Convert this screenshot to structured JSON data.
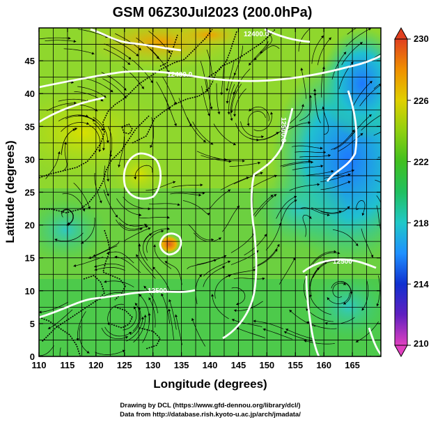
{
  "title": "GSM 06Z30Jul2023 (200.0hPa)",
  "x_axis": {
    "label": "Longitude (degrees)",
    "min": 110,
    "max": 170,
    "ticks": [
      "110",
      "115",
      "120",
      "125",
      "130",
      "135",
      "140",
      "145",
      "150",
      "155",
      "160",
      "165"
    ]
  },
  "y_axis": {
    "label": "Latitude (degrees)",
    "min": 0,
    "max": 50,
    "ticks": [
      "0",
      "5",
      "10",
      "15",
      "20",
      "25",
      "30",
      "35",
      "40",
      "45"
    ]
  },
  "colorbar": {
    "labels": [
      "230",
      "226",
      "222",
      "218",
      "214",
      "210"
    ],
    "min": 210,
    "max": 230,
    "colors": [
      "#e040c0",
      "#6020c0",
      "#1030d0",
      "#1e90ff",
      "#20c8c8",
      "#20c060",
      "#40c020",
      "#90d010",
      "#e0d000",
      "#f09000",
      "#e04020"
    ]
  },
  "contour_labels": [
    {
      "text": "12400.0"
    },
    {
      "text": "12500.0"
    },
    {
      "text": "12500.0"
    },
    {
      "text": "12500"
    },
    {
      "text": "12500"
    }
  ],
  "credits": {
    "line1": "Drawing by DCL (https://www.gfd-dennou.org/library/dcl/)",
    "line2": "Data from http://database.rish.kyoto-u.ac.jp/arch/jmadata/"
  }
}
